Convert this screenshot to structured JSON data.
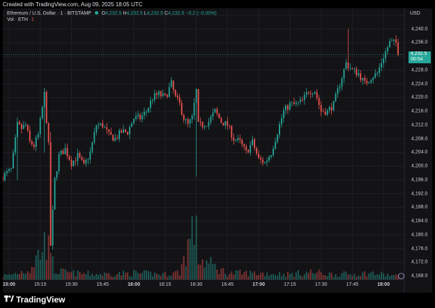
{
  "header": {
    "created_text": "Created with TradingView.com, Aug 09, 2025 18:05 UTC"
  },
  "legend": {
    "symbol": "Ethereum / U.S. Dollar · 1 · BITSTAMP",
    "o_label": "O",
    "o_value": "4,232.5",
    "h_label": "H",
    "h_value": "4,232.5",
    "l_label": "L",
    "l_value": "4,232.5",
    "c_label": "C",
    "c_value": "4,232.5",
    "change": "−0.2 (−0.00%)",
    "vol_label": "Vol · ETH",
    "vol_value": "1"
  },
  "price_scale": {
    "currency": "USD",
    "last_price": "4,232.5",
    "countdown": "00:54"
  },
  "footer": {
    "brand": "TradingView"
  },
  "colors": {
    "up": "#26a69a",
    "down": "#ef5350",
    "background": "#131316",
    "grid": "#1f2024"
  },
  "chart_data": {
    "type": "candlestick",
    "interval": "1 minute",
    "y_ticks": [
      4168,
      4172,
      4176,
      4180,
      4184,
      4188,
      4192,
      4196,
      4200,
      4204,
      4208,
      4212,
      4216,
      4220,
      4224,
      4228,
      4232,
      4236,
      4240,
      4244
    ],
    "y_tick_labels": [
      "4,168.0",
      "4,172.0",
      "4,176.0",
      "4,180.0",
      "4,184.0",
      "4,188.0",
      "4,192.0",
      "4,196.0",
      "4,200.0",
      "4,204.0",
      "4,208.0",
      "4,212.0",
      "4,216.0",
      "4,220.0",
      "4,224.0",
      "4,228.0",
      "4,232.0",
      "4,236.0",
      "4,240.0",
      "4,244.0"
    ],
    "ylim": [
      4167,
      4246
    ],
    "x_ticks": [
      {
        "label": "15:00",
        "minute": 0,
        "bold": true
      },
      {
        "label": "15:15",
        "minute": 15,
        "bold": false
      },
      {
        "label": "15:30",
        "minute": 30,
        "bold": false
      },
      {
        "label": "15:45",
        "minute": 45,
        "bold": false
      },
      {
        "label": "16:00",
        "minute": 60,
        "bold": true
      },
      {
        "label": "16:15",
        "minute": 75,
        "bold": false
      },
      {
        "label": "16:30",
        "minute": 90,
        "bold": false
      },
      {
        "label": "16:45",
        "minute": 105,
        "bold": false
      },
      {
        "label": "17:00",
        "minute": 120,
        "bold": true
      },
      {
        "label": "17:15",
        "minute": 135,
        "bold": false
      },
      {
        "label": "17:30",
        "minute": 150,
        "bold": false
      },
      {
        "label": "17:45",
        "minute": 165,
        "bold": false
      },
      {
        "label": "18:00",
        "minute": 180,
        "bold": true
      }
    ],
    "xlim_minutes": [
      -3,
      190
    ],
    "anchors_close": [
      [
        -3,
        4197
      ],
      [
        -1,
        4198
      ],
      [
        1,
        4199
      ],
      [
        2,
        4203
      ],
      [
        4,
        4212
      ],
      [
        6,
        4211
      ],
      [
        8,
        4212
      ],
      [
        10,
        4207
      ],
      [
        12,
        4206
      ],
      [
        14,
        4209
      ],
      [
        17,
        4221
      ],
      [
        19,
        4206
      ],
      [
        20,
        4177
      ],
      [
        22,
        4196
      ],
      [
        24,
        4203
      ],
      [
        27,
        4205
      ],
      [
        30,
        4201
      ],
      [
        33,
        4203
      ],
      [
        36,
        4200
      ],
      [
        39,
        4204
      ],
      [
        42,
        4212
      ],
      [
        45,
        4212
      ],
      [
        48,
        4209
      ],
      [
        51,
        4208
      ],
      [
        54,
        4210
      ],
      [
        57,
        4210
      ],
      [
        60,
        4214
      ],
      [
        63,
        4214
      ],
      [
        66,
        4216
      ],
      [
        69,
        4220
      ],
      [
        72,
        4221
      ],
      [
        75,
        4220
      ],
      [
        78,
        4224
      ],
      [
        80,
        4220
      ],
      [
        82,
        4218
      ],
      [
        84,
        4214
      ],
      [
        86,
        4212
      ],
      [
        88,
        4214
      ],
      [
        90,
        4222
      ],
      [
        91,
        4212
      ],
      [
        93,
        4212
      ],
      [
        96,
        4213
      ],
      [
        99,
        4216
      ],
      [
        102,
        4213
      ],
      [
        105,
        4212
      ],
      [
        108,
        4208
      ],
      [
        111,
        4207
      ],
      [
        114,
        4204
      ],
      [
        117,
        4207
      ],
      [
        120,
        4202
      ],
      [
        123,
        4201
      ],
      [
        126,
        4204
      ],
      [
        129,
        4210
      ],
      [
        132,
        4216
      ],
      [
        135,
        4218
      ],
      [
        138,
        4218
      ],
      [
        141,
        4219
      ],
      [
        144,
        4222
      ],
      [
        147,
        4222
      ],
      [
        150,
        4216
      ],
      [
        153,
        4216
      ],
      [
        156,
        4218
      ],
      [
        159,
        4224
      ],
      [
        162,
        4230
      ],
      [
        165,
        4228
      ],
      [
        168,
        4227
      ],
      [
        171,
        4224
      ],
      [
        174,
        4226
      ],
      [
        177,
        4227
      ],
      [
        180,
        4232
      ],
      [
        183,
        4236
      ],
      [
        186,
        4236
      ],
      [
        187,
        4232.5
      ]
    ],
    "spikes": [
      {
        "minute": 20,
        "low": 4177,
        "high": 4210
      },
      {
        "minute": 90,
        "low": 4197,
        "high": 4222
      },
      {
        "minute": 163,
        "low": 4228,
        "high": 4240
      },
      {
        "minute": 17,
        "low": 4204,
        "high": 4222
      },
      {
        "minute": 4,
        "low": 4196,
        "high": 4214
      }
    ],
    "volume_anchors": [
      [
        0,
        4
      ],
      [
        10,
        10
      ],
      [
        19,
        40
      ],
      [
        20,
        22
      ],
      [
        22,
        8
      ],
      [
        30,
        6
      ],
      [
        45,
        5
      ],
      [
        60,
        6
      ],
      [
        75,
        5
      ],
      [
        82,
        7
      ],
      [
        90,
        58
      ],
      [
        91,
        20
      ],
      [
        105,
        6
      ],
      [
        120,
        6
      ],
      [
        135,
        5
      ],
      [
        145,
        7
      ],
      [
        155,
        5
      ],
      [
        165,
        5
      ],
      [
        175,
        6
      ],
      [
        187,
        3
      ]
    ],
    "volume_max": 60
  }
}
